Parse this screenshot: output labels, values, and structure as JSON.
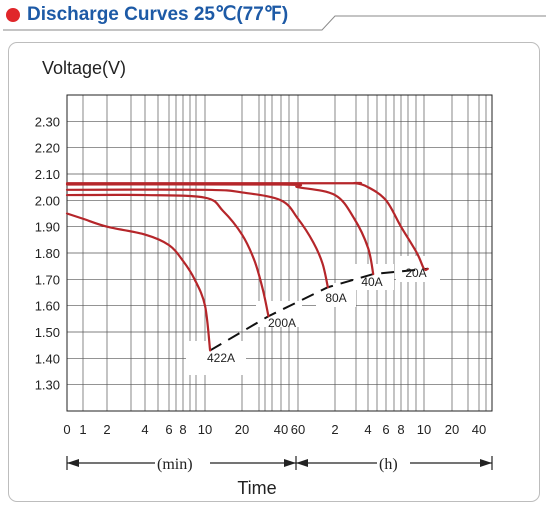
{
  "header": {
    "title": "Discharge Curves 25℃(77℉)",
    "dot_color": "#e0262a",
    "title_color": "#1d5aa6"
  },
  "chart_data": {
    "type": "line",
    "title": "Discharge Curves 25℃(77℉)",
    "ylabel": "Voltage(V)",
    "xlabel": "Time",
    "ylim": [
      1.2,
      2.4
    ],
    "y_ticks": [
      "2.30",
      "2.20",
      "2.10",
      "2.00",
      "1.90",
      "1.80",
      "1.70",
      "1.60",
      "1.50",
      "1.40",
      "1.30"
    ],
    "x_scale": "log",
    "x_ticks": [
      "0",
      "1",
      "2",
      "4",
      "6",
      "8",
      "10",
      "20",
      "40",
      "60",
      "2",
      "4",
      "6",
      "8",
      "10",
      "20",
      "40"
    ],
    "x_unit_min": "(min)",
    "x_unit_h": "(h)",
    "grid": true,
    "line_color": "#b5262a",
    "series": [
      {
        "name": "422A",
        "points": [
          [
            0,
            1.95
          ],
          [
            1,
            1.93
          ],
          [
            2,
            1.9
          ],
          [
            4,
            1.87
          ],
          [
            6,
            1.83
          ],
          [
            8,
            1.77
          ],
          [
            9,
            1.7
          ],
          [
            10,
            1.6
          ],
          [
            11,
            1.43
          ]
        ]
      },
      {
        "name": "200A",
        "points": [
          [
            0,
            2.02
          ],
          [
            4,
            2.02
          ],
          [
            10,
            2.01
          ],
          [
            14,
            1.96
          ],
          [
            20,
            1.87
          ],
          [
            25,
            1.77
          ],
          [
            29,
            1.66
          ],
          [
            32,
            1.56
          ]
        ]
      },
      {
        "name": "80A",
        "points": [
          [
            0,
            2.04
          ],
          [
            10,
            2.04
          ],
          [
            20,
            2.03
          ],
          [
            40,
            2.0
          ],
          [
            60,
            1.93
          ],
          [
            80,
            1.84
          ],
          [
            95,
            1.76
          ],
          [
            105,
            1.67
          ]
        ]
      },
      {
        "name": "40A",
        "points": [
          [
            0,
            2.06
          ],
          [
            40,
            2.06
          ],
          [
            60,
            2.05
          ],
          [
            120,
            2.02
          ],
          [
            180,
            1.93
          ],
          [
            240,
            1.82
          ],
          [
            270,
            1.72
          ]
        ]
      },
      {
        "name": "20A",
        "points": [
          [
            0,
            2.065
          ],
          [
            120,
            2.065
          ],
          [
            180,
            2.065
          ],
          [
            240,
            2.05
          ],
          [
            360,
            2.0
          ],
          [
            480,
            1.9
          ],
          [
            560,
            1.8
          ],
          [
            600,
            1.74
          ],
          [
            660,
            1.74
          ]
        ]
      }
    ],
    "cutoff_line": {
      "points": [
        [
          11,
          1.43
        ],
        [
          32,
          1.56
        ],
        [
          105,
          1.67
        ],
        [
          270,
          1.72
        ],
        [
          660,
          1.74
        ]
      ]
    }
  }
}
